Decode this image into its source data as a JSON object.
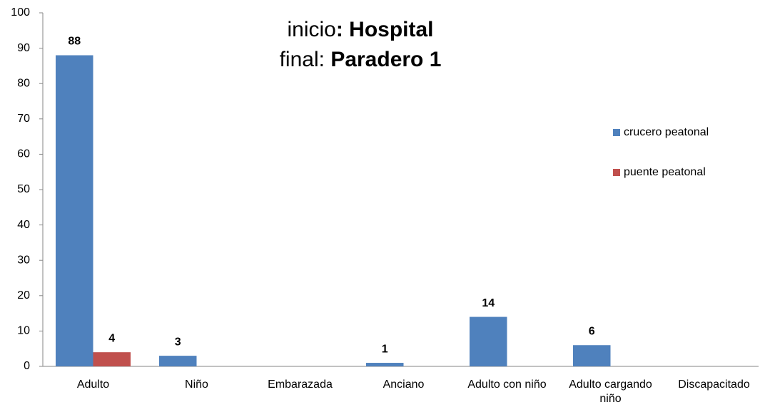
{
  "chart_data": {
    "type": "bar",
    "title": [
      [
        {
          "text": "inicio",
          "bold": false
        },
        {
          "text": ": Hospital",
          "bold": true
        }
      ],
      [
        {
          "text": "final: ",
          "bold": false
        },
        {
          "text": "Paradero 1",
          "bold": true
        }
      ]
    ],
    "categories": [
      "Adulto",
      "Niño",
      "Embarazada",
      "Anciano",
      "Adulto con niño",
      "Adulto cargando niño",
      "Discapacitado"
    ],
    "series": [
      {
        "name": "crucero peatonal",
        "color": "#4f81bd",
        "values": [
          88,
          3,
          null,
          1,
          14,
          6,
          null
        ]
      },
      {
        "name": "puente peatonal",
        "color": "#c0504d",
        "values": [
          4,
          null,
          null,
          null,
          null,
          null,
          null
        ]
      }
    ],
    "ylim": [
      0,
      100
    ],
    "yticks": [
      0,
      10,
      20,
      30,
      40,
      50,
      60,
      70,
      80,
      90,
      100
    ],
    "grid": false,
    "legend": "right"
  }
}
